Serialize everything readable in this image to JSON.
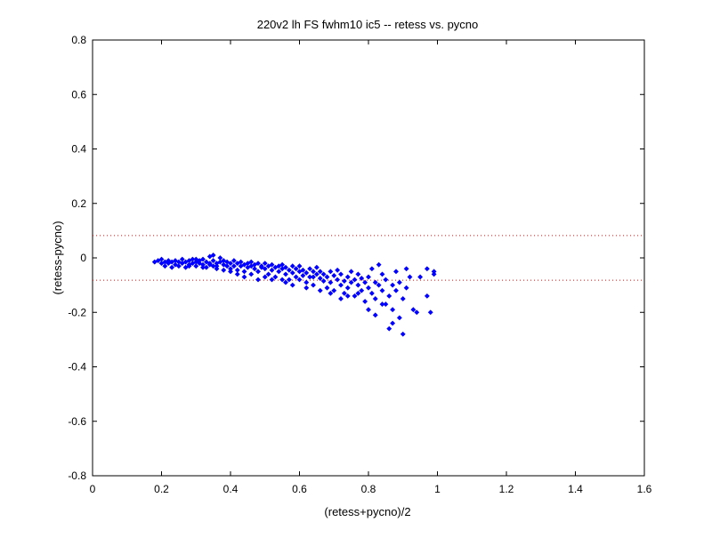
{
  "chart_data": {
    "type": "scatter",
    "title": "220v2 lh FS fwhm10 ic5 -- retess vs. pycno",
    "xlabel": "(retess+pycno)/2",
    "ylabel": "(retess-pycno)",
    "xlim": [
      0,
      1.6
    ],
    "ylim": [
      -0.8,
      0.8
    ],
    "xticks": [
      0,
      0.2,
      0.4,
      0.6,
      0.8,
      1,
      1.2,
      1.4,
      1.6
    ],
    "yticks": [
      -0.8,
      -0.6,
      -0.4,
      -0.2,
      0,
      0.2,
      0.4,
      0.6,
      0.8
    ],
    "xtick_labels": [
      "0",
      "0.2",
      "0.4",
      "0.6",
      "0.8",
      "1",
      "1.2",
      "1.4",
      "1.6"
    ],
    "ytick_labels": [
      "-0.8",
      "-0.6",
      "-0.4",
      "-0.2",
      "0",
      "0.2",
      "0.4",
      "0.6",
      "0.8"
    ],
    "grid": false,
    "reference_lines": [
      {
        "y": 0.082,
        "style": "dotted",
        "color": "#ff0000"
      },
      {
        "y": -0.082,
        "style": "dotted",
        "color": "#ff0000"
      }
    ],
    "marker_color": "#0000ff",
    "series": [
      {
        "points": [
          [
            0.18,
            -0.015
          ],
          [
            0.19,
            -0.01
          ],
          [
            0.2,
            -0.02
          ],
          [
            0.2,
            -0.005
          ],
          [
            0.21,
            -0.015
          ],
          [
            0.21,
            -0.03
          ],
          [
            0.22,
            -0.01
          ],
          [
            0.22,
            -0.02
          ],
          [
            0.23,
            -0.015
          ],
          [
            0.23,
            -0.035
          ],
          [
            0.24,
            -0.01
          ],
          [
            0.24,
            -0.025
          ],
          [
            0.25,
            -0.015
          ],
          [
            0.25,
            -0.03
          ],
          [
            0.26,
            -0.02
          ],
          [
            0.26,
            -0.005
          ],
          [
            0.27,
            -0.015
          ],
          [
            0.27,
            -0.035
          ],
          [
            0.28,
            -0.01
          ],
          [
            0.28,
            -0.025
          ],
          [
            0.29,
            -0.02
          ],
          [
            0.29,
            -0.005
          ],
          [
            0.3,
            -0.015
          ],
          [
            0.3,
            -0.03
          ],
          [
            0.31,
            -0.02
          ],
          [
            0.31,
            -0.01
          ],
          [
            0.32,
            -0.025
          ],
          [
            0.32,
            -0.005
          ],
          [
            0.33,
            -0.015
          ],
          [
            0.33,
            -0.035
          ],
          [
            0.34,
            -0.02
          ],
          [
            0.34,
            0.005
          ],
          [
            0.35,
            -0.01
          ],
          [
            0.35,
            -0.03
          ],
          [
            0.35,
            0.01
          ],
          [
            0.36,
            -0.02
          ],
          [
            0.36,
            -0.04
          ],
          [
            0.37,
            -0.015
          ],
          [
            0.37,
            0.0
          ],
          [
            0.38,
            -0.025
          ],
          [
            0.38,
            -0.01
          ],
          [
            0.39,
            -0.03
          ],
          [
            0.39,
            -0.015
          ],
          [
            0.4,
            -0.02
          ],
          [
            0.4,
            -0.04
          ],
          [
            0.41,
            -0.01
          ],
          [
            0.41,
            -0.03
          ],
          [
            0.42,
            -0.02
          ],
          [
            0.42,
            -0.045
          ],
          [
            0.43,
            -0.015
          ],
          [
            0.43,
            -0.03
          ],
          [
            0.44,
            -0.025
          ],
          [
            0.44,
            -0.05
          ],
          [
            0.45,
            -0.02
          ],
          [
            0.45,
            -0.035
          ],
          [
            0.46,
            -0.03
          ],
          [
            0.46,
            -0.015
          ],
          [
            0.47,
            -0.04
          ],
          [
            0.47,
            -0.025
          ],
          [
            0.48,
            -0.02
          ],
          [
            0.48,
            -0.05
          ],
          [
            0.49,
            -0.035
          ],
          [
            0.49,
            -0.03
          ],
          [
            0.5,
            -0.04
          ],
          [
            0.5,
            -0.02
          ],
          [
            0.51,
            -0.03
          ],
          [
            0.51,
            -0.06
          ],
          [
            0.52,
            -0.025
          ],
          [
            0.52,
            -0.045
          ],
          [
            0.53,
            -0.035
          ],
          [
            0.53,
            -0.07
          ],
          [
            0.54,
            -0.03
          ],
          [
            0.54,
            -0.05
          ],
          [
            0.55,
            -0.04
          ],
          [
            0.55,
            -0.025
          ],
          [
            0.56,
            -0.06
          ],
          [
            0.56,
            -0.035
          ],
          [
            0.57,
            -0.045
          ],
          [
            0.57,
            -0.08
          ],
          [
            0.58,
            -0.03
          ],
          [
            0.58,
            -0.055
          ],
          [
            0.59,
            -0.04
          ],
          [
            0.59,
            -0.07
          ],
          [
            0.6,
            -0.05
          ],
          [
            0.6,
            -0.03
          ],
          [
            0.61,
            -0.065
          ],
          [
            0.61,
            -0.045
          ],
          [
            0.62,
            -0.055
          ],
          [
            0.62,
            -0.09
          ],
          [
            0.63,
            -0.04
          ],
          [
            0.63,
            -0.07
          ],
          [
            0.64,
            -0.05
          ],
          [
            0.64,
            -0.1
          ],
          [
            0.65,
            -0.06
          ],
          [
            0.65,
            -0.035
          ],
          [
            0.66,
            -0.075
          ],
          [
            0.66,
            -0.05
          ],
          [
            0.67,
            -0.085
          ],
          [
            0.67,
            -0.06
          ],
          [
            0.68,
            -0.07
          ],
          [
            0.68,
            -0.11
          ],
          [
            0.69,
            -0.05
          ],
          [
            0.69,
            -0.09
          ],
          [
            0.7,
            -0.065
          ],
          [
            0.7,
            -0.12
          ],
          [
            0.71,
            -0.08
          ],
          [
            0.71,
            -0.045
          ],
          [
            0.72,
            -0.1
          ],
          [
            0.72,
            -0.06
          ],
          [
            0.73,
            -0.085
          ],
          [
            0.73,
            -0.13
          ],
          [
            0.74,
            -0.07
          ],
          [
            0.74,
            -0.11
          ],
          [
            0.75,
            -0.09
          ],
          [
            0.75,
            -0.05
          ],
          [
            0.76,
            -0.14
          ],
          [
            0.76,
            -0.08
          ],
          [
            0.77,
            -0.1
          ],
          [
            0.77,
            -0.06
          ],
          [
            0.78,
            -0.12
          ],
          [
            0.78,
            -0.075
          ],
          [
            0.79,
            -0.09
          ],
          [
            0.79,
            -0.16
          ],
          [
            0.8,
            -0.11
          ],
          [
            0.8,
            -0.07
          ],
          [
            0.81,
            -0.13
          ],
          [
            0.81,
            -0.04
          ],
          [
            0.82,
            -0.09
          ],
          [
            0.82,
            -0.15
          ],
          [
            0.83,
            -0.1
          ],
          [
            0.83,
            -0.025
          ],
          [
            0.84,
            -0.12
          ],
          [
            0.84,
            -0.06
          ],
          [
            0.85,
            -0.17
          ],
          [
            0.85,
            -0.08
          ],
          [
            0.86,
            -0.14
          ],
          [
            0.86,
            -0.26
          ],
          [
            0.87,
            -0.1
          ],
          [
            0.87,
            -0.19
          ],
          [
            0.88,
            -0.12
          ],
          [
            0.88,
            -0.05
          ],
          [
            0.89,
            -0.22
          ],
          [
            0.89,
            -0.09
          ],
          [
            0.9,
            -0.28
          ],
          [
            0.9,
            -0.15
          ],
          [
            0.91,
            -0.04
          ],
          [
            0.91,
            -0.11
          ],
          [
            0.92,
            -0.07
          ],
          [
            0.93,
            -0.19
          ],
          [
            0.94,
            -0.2
          ],
          [
            0.95,
            -0.07
          ],
          [
            0.97,
            -0.04
          ],
          [
            0.98,
            -0.2
          ],
          [
            0.99,
            -0.06
          ],
          [
            0.99,
            -0.05
          ],
          [
            0.97,
            -0.14
          ],
          [
            0.55,
            -0.08
          ],
          [
            0.58,
            -0.1
          ],
          [
            0.62,
            -0.11
          ],
          [
            0.48,
            -0.08
          ],
          [
            0.5,
            -0.07
          ],
          [
            0.44,
            -0.07
          ],
          [
            0.46,
            -0.06
          ],
          [
            0.52,
            -0.08
          ],
          [
            0.56,
            -0.09
          ],
          [
            0.6,
            -0.08
          ],
          [
            0.64,
            -0.07
          ],
          [
            0.66,
            -0.12
          ],
          [
            0.69,
            -0.13
          ],
          [
            0.72,
            -0.15
          ],
          [
            0.74,
            -0.14
          ],
          [
            0.77,
            -0.13
          ],
          [
            0.8,
            -0.19
          ],
          [
            0.82,
            -0.21
          ],
          [
            0.84,
            -0.17
          ],
          [
            0.87,
            -0.24
          ],
          [
            0.4,
            -0.05
          ],
          [
            0.38,
            -0.045
          ],
          [
            0.42,
            -0.06
          ],
          [
            0.36,
            -0.03
          ],
          [
            0.34,
            -0.025
          ],
          [
            0.32,
            -0.035
          ],
          [
            0.3,
            -0.005
          ],
          [
            0.28,
            -0.03
          ]
        ]
      }
    ]
  }
}
